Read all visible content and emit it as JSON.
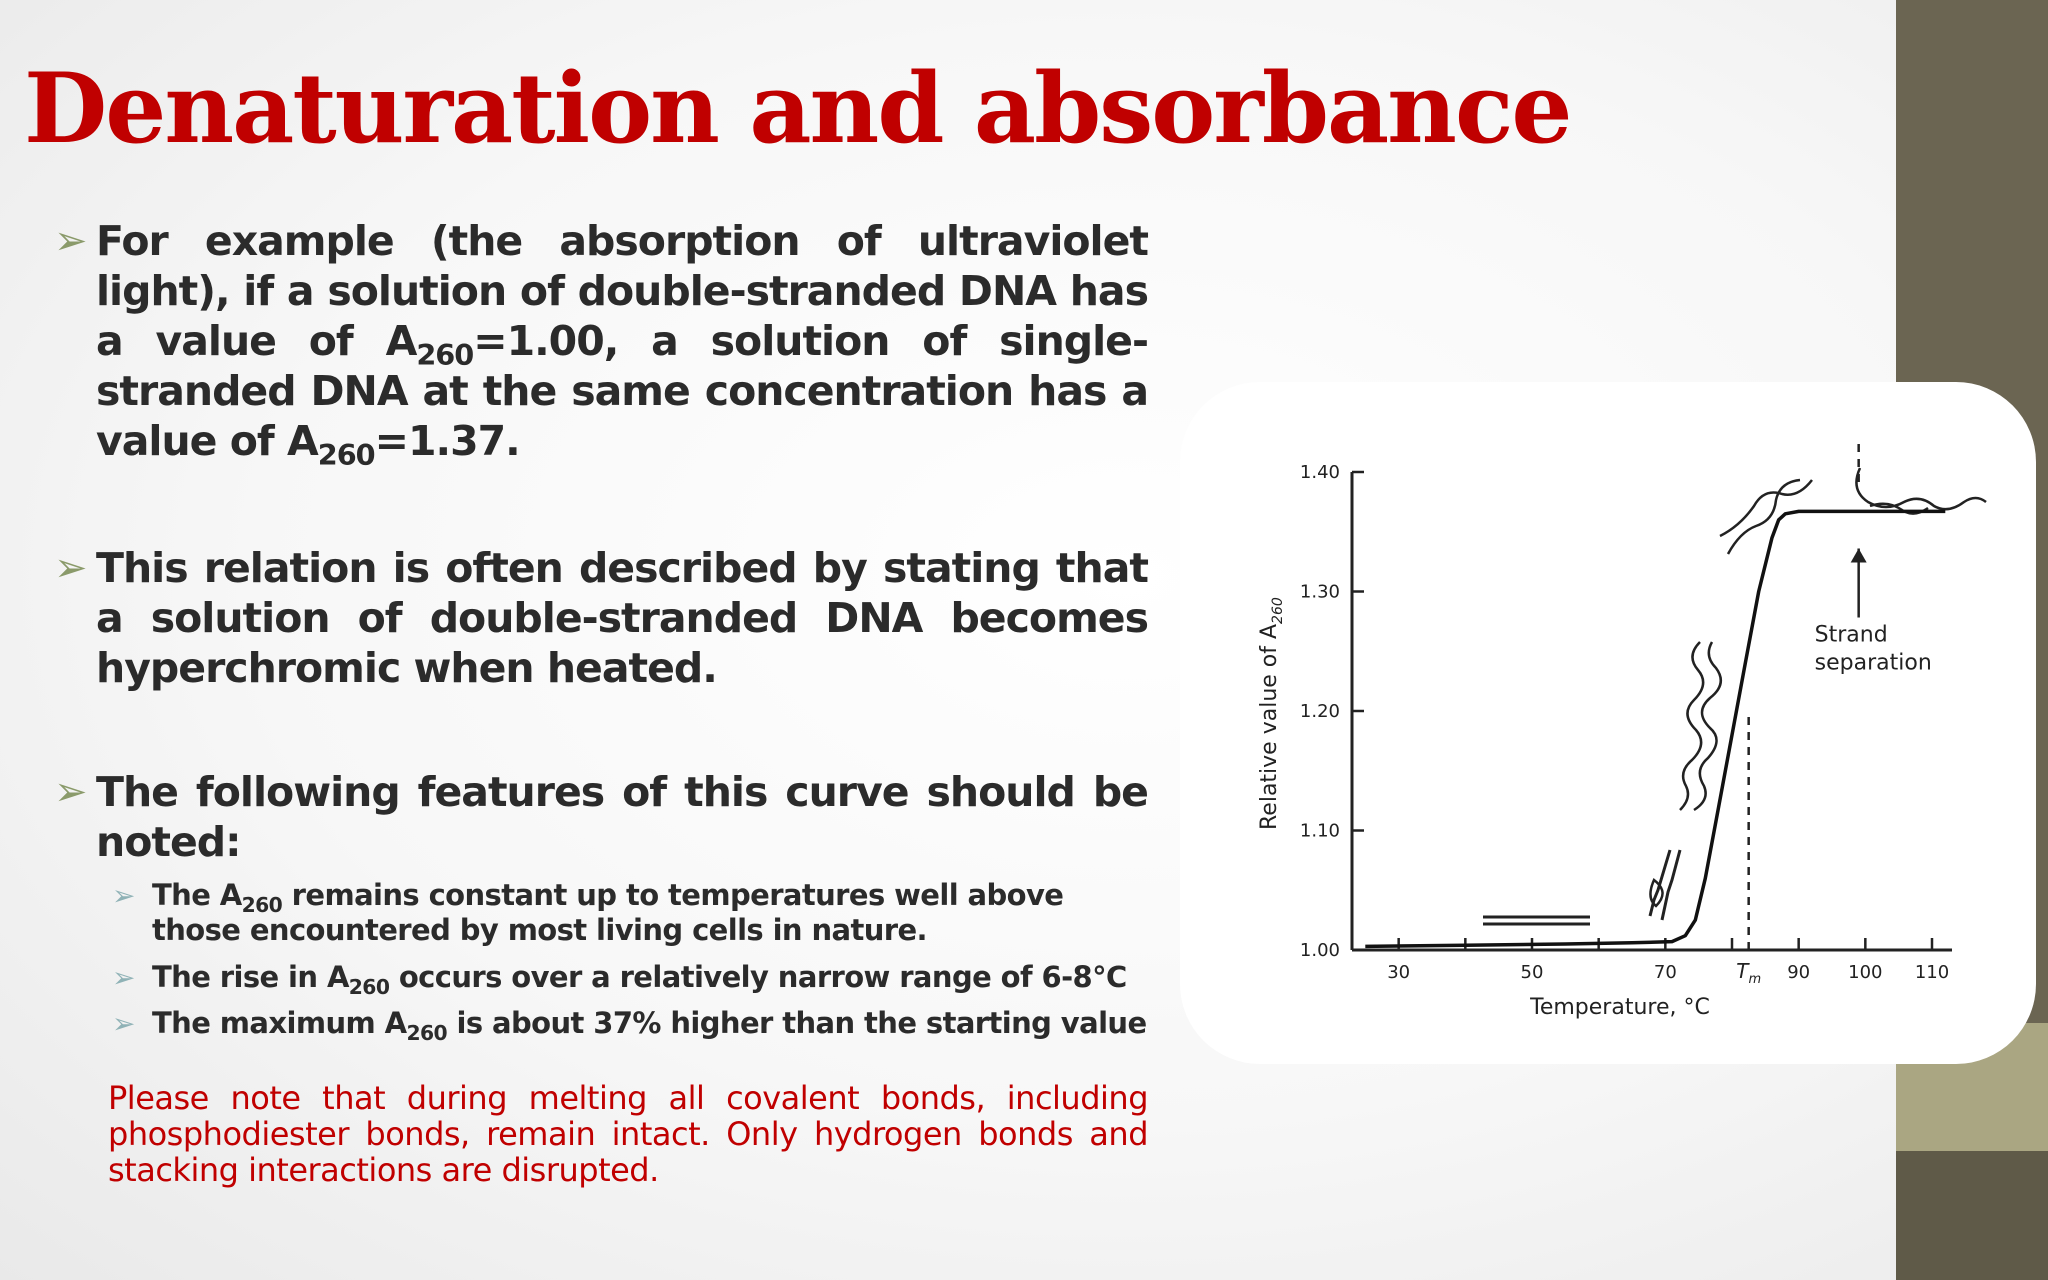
{
  "slide": {
    "title": "Denaturation and absorbance",
    "bullet1": {
      "before": "For example (the absorption of ultraviolet light), if a solution of double-stranded DNA has a value of A",
      "sub1": "260",
      "middle": "=1.00, a solution of single-stranded DNA at the same concentration has a value of A",
      "sub2": "260",
      "after": "=1.37."
    },
    "bullet2": "This relation is often described by stating that a solution of double-stranded DNA becomes hyperchromic when heated.",
    "bullet3": "The following features of this curve should be noted:",
    "sub_bullets": [
      {
        "before": "The A",
        "sub": "260",
        "after": " remains constant up to temperatures well above those encountered by most living cells in nature."
      },
      {
        "before": "The rise in A",
        "sub": "260",
        "after": " occurs over a relatively narrow range of 6-8℃"
      },
      {
        "before": "The maximum A",
        "sub": "260",
        "after": " is about 37% higher than the starting value"
      }
    ],
    "note": "Please note that during melting all covalent bonds, including phosphodiester bonds, remain intact. Only hydrogen bonds and stacking interactions are disrupted.",
    "bullet_icon": "arrowhead-bullet-icon",
    "colors": {
      "title": "#c00000",
      "note": "#c00000",
      "text": "#2b2b2b",
      "band_dark": "#6b6552",
      "band_light": "#aaa682"
    }
  },
  "chart_data": {
    "type": "line",
    "xlabel": "Temperature, °C",
    "ylabel_main": "Relative value of A",
    "ylabel_sub": "260",
    "xlim": [
      23,
      113
    ],
    "ylim": [
      1.0,
      1.4
    ],
    "x_ticks": [
      30,
      50,
      70,
      90,
      100,
      110
    ],
    "x_tick_labels": [
      "30",
      "50",
      "70",
      "90",
      "100",
      "110"
    ],
    "tm_label_main": "T",
    "tm_label_sub": "m",
    "tm_x": 82.5,
    "y_ticks": [
      1.0,
      1.1,
      1.2,
      1.3,
      1.4
    ],
    "y_tick_labels": [
      "1.00",
      "1.10",
      "1.20",
      "1.30",
      "1.40"
    ],
    "series": [
      {
        "x": [
          25,
          40,
          55,
          65,
          71,
          73,
          74.5,
          76,
          78,
          80,
          82,
          84,
          86,
          87,
          88,
          90,
          95,
          100,
          110,
          112
        ],
        "values": [
          1.003,
          1.004,
          1.005,
          1.006,
          1.007,
          1.012,
          1.025,
          1.06,
          1.12,
          1.18,
          1.24,
          1.3,
          1.345,
          1.36,
          1.365,
          1.367,
          1.367,
          1.367,
          1.367,
          1.367
        ]
      }
    ],
    "strand_separation_x": 99,
    "annotation_line1": "Strand",
    "annotation_line2": "separation"
  }
}
